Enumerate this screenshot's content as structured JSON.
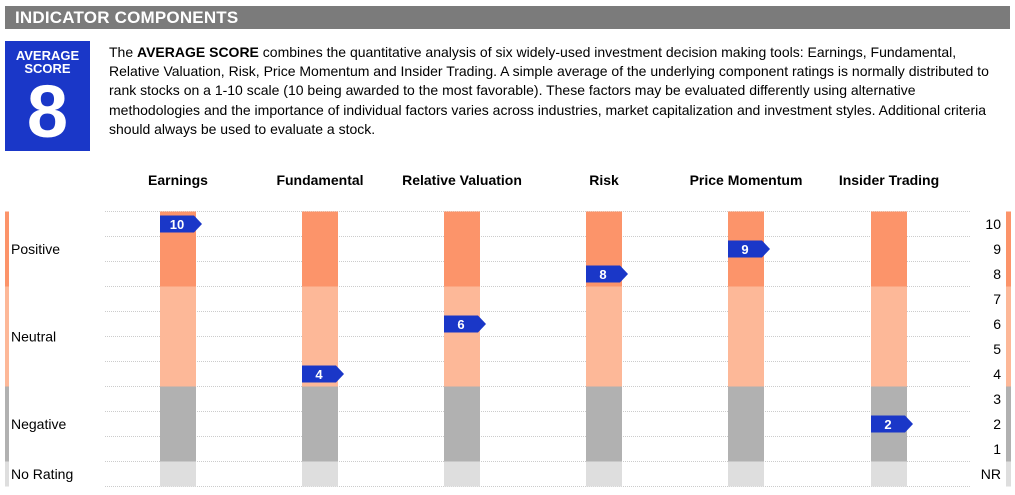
{
  "header": {
    "title": "INDICATOR COMPONENTS"
  },
  "score_box": {
    "label_line1": "AVERAGE",
    "label_line2": "SCORE",
    "value": "8"
  },
  "description": {
    "lead": "The ",
    "bold": "AVERAGE SCORE",
    "text": " combines the quantitative analysis of six widely-used investment decision making tools: Earnings, Fundamental, Relative Valuation, Risk, Price Momentum and Insider Trading. A simple average of the underlying component ratings is normally distributed to rank stocks on a 1-10 scale (10 being awarded to the most favorable). These factors may be evaluated differently using alternative methodologies and the importance of individual factors varies across industries, market capitalization and investment styles. Additional criteria should always be used to evaluate a stock."
  },
  "colors": {
    "positive": "#fc946a",
    "neutral": "#fdb898",
    "negative": "#b1b1b1",
    "no_rating": "#dedede",
    "marker": "#1a37c8",
    "grid": "#9a9a9a"
  },
  "chart_data": {
    "type": "bar",
    "categories": [
      "Earnings",
      "Fundamental",
      "Relative Valuation",
      "Risk",
      "Price Momentum",
      "Insider Trading"
    ],
    "values": [
      10,
      4,
      6,
      8,
      9,
      2
    ],
    "y_ticks": [
      "NR",
      "1",
      "2",
      "3",
      "4",
      "5",
      "6",
      "7",
      "8",
      "9",
      "10"
    ],
    "ylim": [
      0,
      10
    ],
    "zones": [
      {
        "name": "Positive",
        "from": 8,
        "to": 10
      },
      {
        "name": "Neutral",
        "from": 4,
        "to": 7
      },
      {
        "name": "Negative",
        "from": 1,
        "to": 3
      },
      {
        "name": "No Rating",
        "from": "NR",
        "to": "NR"
      }
    ]
  }
}
